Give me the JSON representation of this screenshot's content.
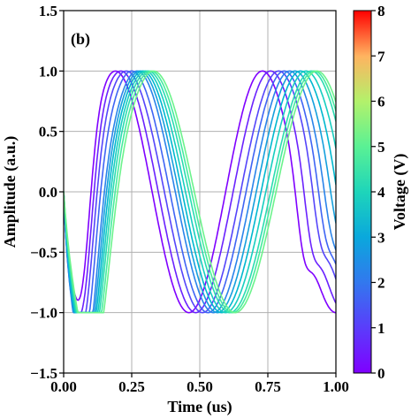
{
  "chart_data": {
    "type": "line",
    "panel_label": "(b)",
    "xlabel": "Time (us)",
    "ylabel": "Amplitude (a.u.)",
    "xlim": [
      0.0,
      1.0
    ],
    "ylim": [
      -1.5,
      1.5
    ],
    "x_ticks": [
      "0.00",
      "0.25",
      "0.50",
      "0.75",
      "1.00"
    ],
    "y_ticks": [
      "1.5",
      "1.0",
      "0.5",
      "0.0",
      "−0.5",
      "−1.0",
      "−1.5"
    ],
    "grid": true,
    "colorbar": {
      "label": "Voltage (V)",
      "range": [
        0,
        8
      ],
      "ticks": [
        "0",
        "1",
        "2",
        "3",
        "4",
        "5",
        "6",
        "7",
        "8"
      ],
      "colormap": "rainbow"
    },
    "series_shape": "sinusoid, period ~0.54 us, amplitude ~1.0, with a decaying low-frequency dip at early times",
    "series": [
      {
        "voltage": 0.0,
        "color": "#7f00ff",
        "peak_times": [
          0.19,
          0.73
        ],
        "trough_time": 0.46
      },
      {
        "voltage": 0.5,
        "color": "#6a22fe",
        "peak_times": [
          0.21,
          0.76
        ],
        "trough_time": 0.48
      },
      {
        "voltage": 1.0,
        "color": "#5545fa",
        "peak_times": [
          0.23,
          0.79
        ],
        "trough_time": 0.5
      },
      {
        "voltage": 1.5,
        "color": "#3f65f4",
        "peak_times": [
          0.25,
          0.81
        ],
        "trough_time": 0.52
      },
      {
        "voltage": 2.0,
        "color": "#2a84ea",
        "peak_times": [
          0.27,
          0.83
        ],
        "trough_time": 0.54
      },
      {
        "voltage": 2.5,
        "color": "#15a0dd",
        "peak_times": [
          0.28,
          0.85
        ],
        "trough_time": 0.56
      },
      {
        "voltage": 3.0,
        "color": "#00b8cf",
        "peak_times": [
          0.29,
          0.87
        ],
        "trough_time": 0.58
      },
      {
        "voltage": 3.5,
        "color": "#17cec0",
        "peak_times": [
          0.3,
          0.89
        ],
        "trough_time": 0.59
      },
      {
        "voltage": 4.0,
        "color": "#2adcb1",
        "peak_times": [
          0.31,
          0.91
        ],
        "trough_time": 0.6
      },
      {
        "voltage": 4.5,
        "color": "#46eb9f",
        "peak_times": [
          0.32,
          0.92
        ],
        "trough_time": 0.61
      },
      {
        "voltage": 5.0,
        "color": "#6cf38c",
        "peak_times": [
          0.33,
          0.93
        ],
        "trough_time": 0.62
      }
    ]
  }
}
